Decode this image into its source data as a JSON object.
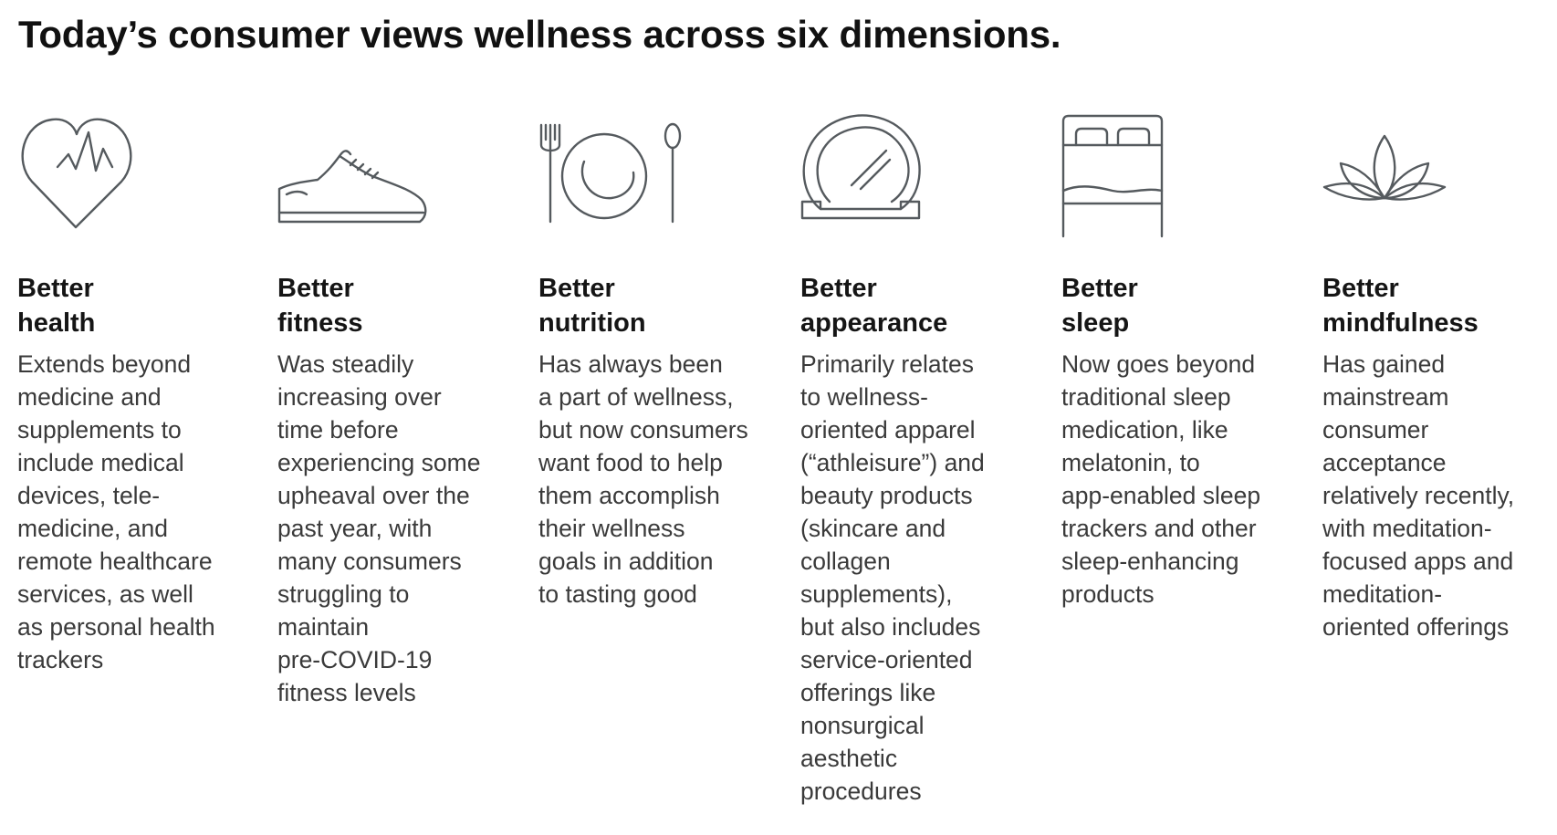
{
  "title": "Today’s consumer views wellness across six dimensions.",
  "dimensions": [
    {
      "icon": "heart-rate-icon",
      "heading": [
        "Better",
        "health"
      ],
      "description": [
        "Extends beyond",
        "medicine and",
        "supplements to",
        "include medical",
        "devices, tele-",
        "medicine, and",
        "remote healthcare",
        "services, as well",
        "as personal health",
        "trackers"
      ]
    },
    {
      "icon": "sneaker-icon",
      "heading": [
        "Better",
        "fitness"
      ],
      "description": [
        "Was steadily",
        "increasing over",
        "time before",
        "experiencing some",
        "upheaval over the",
        "past year, with",
        "many consumers",
        "struggling to",
        "maintain",
        "pre-COVID-19",
        "fitness levels"
      ]
    },
    {
      "icon": "plate-utensils-icon",
      "heading": [
        "Better",
        "nutrition"
      ],
      "description": [
        "Has always been",
        "a part of wellness,",
        "but now consumers",
        "want food to help",
        "them accomplish",
        "their wellness",
        "goals in addition",
        "to tasting good"
      ]
    },
    {
      "icon": "mirror-icon",
      "heading": [
        "Better",
        "appearance"
      ],
      "description": [
        "Primarily relates",
        "to wellness-",
        "oriented apparel",
        "(“athleisure”) and",
        "beauty products",
        "(skincare and",
        "collagen",
        "supplements),",
        "but also includes",
        "service-oriented",
        "offerings like",
        "nonsurgical",
        "aesthetic",
        "procedures"
      ]
    },
    {
      "icon": "bed-icon",
      "heading": [
        "Better",
        "sleep"
      ],
      "description": [
        "Now goes beyond",
        "traditional sleep",
        "medication, like",
        "melatonin, to",
        "app-enabled sleep",
        "trackers and other",
        "sleep-enhancing",
        "products"
      ]
    },
    {
      "icon": "lotus-icon",
      "heading": [
        "Better",
        "mindfulness"
      ],
      "description": [
        "Has gained",
        "mainstream",
        "consumer",
        "acceptance",
        "relatively recently,",
        "with meditation-",
        "focused apps and",
        "meditation-",
        "oriented offerings"
      ]
    }
  ]
}
